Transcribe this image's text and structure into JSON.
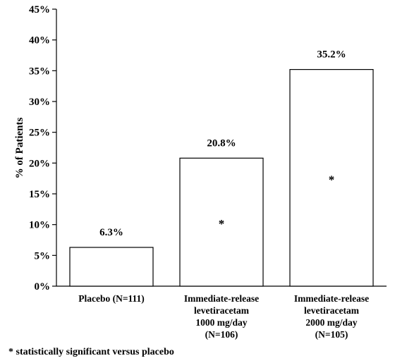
{
  "chart_data": {
    "type": "bar",
    "ylabel": "% of Patients",
    "ylim": [
      0,
      45
    ],
    "yticks": [
      "0%",
      "5%",
      "10%",
      "15%",
      "20%",
      "25%",
      "30%",
      "35%",
      "40%",
      "45%"
    ],
    "ytick_values": [
      0,
      5,
      10,
      15,
      20,
      25,
      30,
      35,
      40,
      45
    ],
    "grid": false,
    "categories": [
      [
        "Placebo (N=111)"
      ],
      [
        "Immediate-release",
        "levetiracetam",
        "1000 mg/day",
        "(N=106)"
      ],
      [
        "Immediate-release",
        "levetiracetam",
        "2000 mg/day",
        "(N=105)"
      ]
    ],
    "values": [
      6.3,
      20.8,
      35.2
    ],
    "data_labels": [
      "6.3%",
      "20.8%",
      "35.2%"
    ],
    "markers": [
      "",
      "*",
      "*"
    ]
  },
  "footnote": "* statistically significant versus placebo"
}
